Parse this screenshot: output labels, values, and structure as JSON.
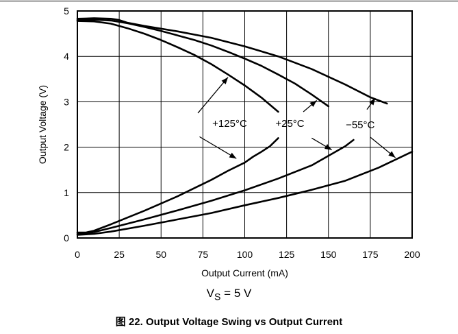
{
  "chart_data": {
    "type": "line",
    "xlabel": "Output Current (mA)",
    "ylabel": "Output Voltage (V)",
    "xlim": [
      0,
      200
    ],
    "ylim": [
      0,
      5
    ],
    "xticks": [
      "0",
      "25",
      "50",
      "75",
      "100",
      "125",
      "150",
      "175",
      "200"
    ],
    "yticks": [
      "0",
      "1",
      "2",
      "3",
      "4",
      "5"
    ],
    "grid": true,
    "series": [
      {
        "name": "+125°C",
        "group": "high",
        "x": [
          0,
          10,
          20,
          30,
          40,
          50,
          60,
          70,
          80,
          90,
          100,
          110,
          120
        ],
        "y": [
          4.78,
          4.77,
          4.72,
          4.62,
          4.5,
          4.36,
          4.2,
          4.03,
          3.83,
          3.6,
          3.36,
          3.09,
          2.78
        ]
      },
      {
        "name": "+25°C",
        "group": "high",
        "x": [
          0,
          10,
          20,
          30,
          40,
          50,
          60,
          70,
          80,
          90,
          100,
          110,
          120,
          130,
          140,
          150
        ],
        "y": [
          4.8,
          4.81,
          4.79,
          4.73,
          4.65,
          4.56,
          4.46,
          4.36,
          4.24,
          4.1,
          3.95,
          3.79,
          3.6,
          3.4,
          3.16,
          2.9
        ]
      },
      {
        "name": "−55°C",
        "group": "high",
        "x": [
          0,
          10,
          20,
          25,
          30,
          40,
          60,
          80,
          100,
          120,
          140,
          160,
          175,
          185
        ],
        "y": [
          4.83,
          4.84,
          4.83,
          4.8,
          4.74,
          4.67,
          4.55,
          4.41,
          4.22,
          4.0,
          3.72,
          3.38,
          3.1,
          2.96
        ]
      },
      {
        "name": "+125°C",
        "group": "low",
        "x": [
          0,
          5,
          10,
          20,
          30,
          40,
          50,
          60,
          70,
          80,
          90,
          100,
          105,
          110,
          115,
          120
        ],
        "y": [
          0.12,
          0.12,
          0.16,
          0.3,
          0.45,
          0.6,
          0.76,
          0.92,
          1.1,
          1.28,
          1.48,
          1.66,
          1.79,
          1.9,
          2.02,
          2.2
        ]
      },
      {
        "name": "+25°C",
        "group": "low",
        "x": [
          0,
          5,
          10,
          20,
          40,
          60,
          80,
          100,
          120,
          140,
          160,
          165
        ],
        "y": [
          0.09,
          0.1,
          0.13,
          0.22,
          0.41,
          0.61,
          0.82,
          1.05,
          1.31,
          1.6,
          2.02,
          2.16
        ]
      },
      {
        "name": "−55°C",
        "group": "low",
        "x": [
          0,
          10,
          20,
          40,
          60,
          80,
          100,
          120,
          140,
          160,
          180,
          200
        ],
        "y": [
          0.07,
          0.09,
          0.14,
          0.27,
          0.41,
          0.55,
          0.72,
          0.88,
          1.06,
          1.26,
          1.55,
          1.9
        ]
      }
    ],
    "annotations": [
      {
        "label": "+125°C"
      },
      {
        "label": "+25°C"
      },
      {
        "label": "−55°C"
      }
    ]
  },
  "conditions": {
    "prefix": "V",
    "subscript": "S",
    "suffix": " = 5 V"
  },
  "caption": "图 22. Output Voltage Swing vs Output Current"
}
